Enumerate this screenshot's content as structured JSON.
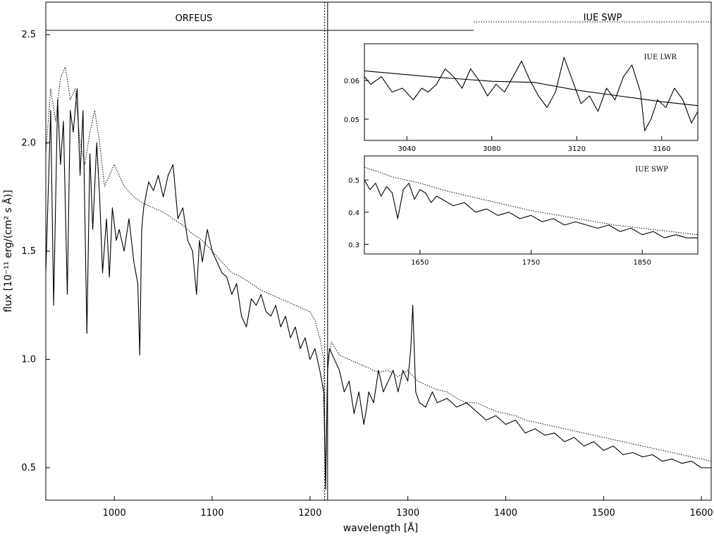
{
  "panels": {
    "left_label": "ORFEUS",
    "right_label": "IUE SWP"
  },
  "chart_data": [
    {
      "id": "main",
      "type": "line",
      "xlabel": "wavelength [Å]",
      "ylabel": "flux [10⁻¹¹ erg/(cm² s Å)]",
      "xlim": [
        930,
        1610
      ],
      "ylim": [
        0.35,
        2.65
      ],
      "x_ticks": [
        1000,
        1100,
        1200,
        1300,
        1400,
        1500,
        1600
      ],
      "y_ticks": [
        0.5,
        1.0,
        1.5,
        2.0,
        2.5
      ],
      "y_tick_labels": [
        "0.5",
        "1.0",
        "1.5",
        "2.0",
        "2.5"
      ],
      "vertical_markers": [
        1215,
        1218
      ],
      "series": [
        {
          "style": "solid",
          "x": [
            930,
            935,
            938,
            942,
            945,
            948,
            952,
            955,
            958,
            962,
            965,
            968,
            972,
            975,
            978,
            982,
            985,
            988,
            992,
            995,
            998,
            1002,
            1005,
            1010,
            1015,
            1020,
            1024,
            1026,
            1028,
            1030,
            1035,
            1040,
            1045,
            1050,
            1055,
            1060,
            1065,
            1070,
            1075,
            1080,
            1084,
            1087,
            1090,
            1095,
            1100,
            1105,
            1110,
            1115,
            1120,
            1125,
            1130,
            1135,
            1140,
            1145,
            1150,
            1155,
            1160,
            1165,
            1170,
            1175,
            1180,
            1185,
            1190,
            1195,
            1200,
            1205,
            1210,
            1212,
            1214,
            1216,
            1218,
            1220,
            1225,
            1230,
            1235,
            1240,
            1245,
            1250,
            1255,
            1258,
            1260,
            1265,
            1270,
            1275,
            1280,
            1285,
            1290,
            1295,
            1300,
            1303,
            1305,
            1308,
            1312,
            1318,
            1325,
            1330,
            1340,
            1350,
            1360,
            1370,
            1380,
            1390,
            1400,
            1410,
            1420,
            1430,
            1440,
            1450,
            1460,
            1470,
            1480,
            1490,
            1500,
            1510,
            1520,
            1530,
            1540,
            1550,
            1560,
            1570,
            1580,
            1590,
            1600,
            1610
          ],
          "y": [
            1.4,
            2.15,
            1.25,
            2.2,
            1.9,
            2.1,
            1.3,
            2.15,
            2.05,
            2.25,
            1.85,
            2.15,
            1.12,
            1.95,
            1.6,
            2.0,
            1.75,
            1.4,
            1.65,
            1.38,
            1.7,
            1.55,
            1.6,
            1.5,
            1.65,
            1.45,
            1.35,
            1.02,
            1.6,
            1.7,
            1.82,
            1.78,
            1.85,
            1.75,
            1.85,
            1.9,
            1.65,
            1.7,
            1.55,
            1.5,
            1.3,
            1.55,
            1.45,
            1.6,
            1.5,
            1.45,
            1.4,
            1.38,
            1.3,
            1.35,
            1.2,
            1.15,
            1.28,
            1.25,
            1.3,
            1.22,
            1.2,
            1.25,
            1.15,
            1.2,
            1.1,
            1.15,
            1.05,
            1.1,
            1.0,
            1.05,
            0.95,
            0.9,
            0.85,
            0.4,
            0.95,
            1.05,
            1.0,
            0.95,
            0.85,
            0.9,
            0.75,
            0.85,
            0.7,
            0.78,
            0.85,
            0.8,
            0.95,
            0.85,
            0.9,
            0.95,
            0.85,
            0.95,
            0.9,
            1.05,
            1.25,
            0.85,
            0.8,
            0.78,
            0.85,
            0.8,
            0.82,
            0.78,
            0.8,
            0.76,
            0.72,
            0.74,
            0.7,
            0.72,
            0.66,
            0.68,
            0.65,
            0.66,
            0.62,
            0.64,
            0.6,
            0.62,
            0.58,
            0.6,
            0.56,
            0.57,
            0.55,
            0.56,
            0.53,
            0.54,
            0.52,
            0.53,
            0.5,
            0.5
          ]
        },
        {
          "style": "dotted",
          "x": [
            930,
            935,
            940,
            945,
            950,
            955,
            960,
            965,
            970,
            975,
            980,
            985,
            990,
            995,
            1000,
            1010,
            1020,
            1030,
            1040,
            1050,
            1060,
            1070,
            1080,
            1090,
            1100,
            1110,
            1120,
            1130,
            1140,
            1150,
            1160,
            1170,
            1180,
            1190,
            1200,
            1205,
            1210,
            1214,
            1216,
            1218,
            1222,
            1230,
            1240,
            1250,
            1260,
            1270,
            1280,
            1290,
            1300,
            1310,
            1320,
            1330,
            1340,
            1350,
            1360,
            1370,
            1380,
            1390,
            1400,
            1410,
            1420,
            1430,
            1440,
            1450,
            1460,
            1470,
            1480,
            1490,
            1500,
            1510,
            1520,
            1530,
            1540,
            1550,
            1560,
            1570,
            1580,
            1590,
            1600,
            1610
          ],
          "y": [
            1.95,
            2.25,
            2.1,
            2.3,
            2.35,
            2.2,
            2.25,
            2.0,
            1.9,
            2.05,
            2.15,
            2.0,
            1.8,
            1.85,
            1.9,
            1.8,
            1.75,
            1.72,
            1.7,
            1.68,
            1.65,
            1.62,
            1.58,
            1.55,
            1.5,
            1.45,
            1.4,
            1.38,
            1.35,
            1.32,
            1.3,
            1.28,
            1.26,
            1.24,
            1.22,
            1.18,
            1.1,
            1.0,
            0.45,
            1.0,
            1.08,
            1.02,
            1.0,
            0.98,
            0.96,
            0.94,
            0.95,
            0.92,
            0.95,
            0.9,
            0.88,
            0.86,
            0.85,
            0.82,
            0.8,
            0.8,
            0.78,
            0.76,
            0.75,
            0.74,
            0.72,
            0.71,
            0.7,
            0.69,
            0.68,
            0.67,
            0.66,
            0.65,
            0.64,
            0.63,
            0.62,
            0.61,
            0.6,
            0.59,
            0.58,
            0.57,
            0.56,
            0.55,
            0.54,
            0.53
          ]
        }
      ]
    },
    {
      "id": "inset-lwr",
      "type": "line",
      "title": "IUE LWR",
      "xlim": [
        3020,
        3177
      ],
      "ylim": [
        0.0445,
        0.0695
      ],
      "x_ticks": [
        3040,
        3080,
        3120,
        3160
      ],
      "y_ticks": [
        0.05,
        0.06
      ],
      "y_tick_labels": [
        "0.05",
        "0.06"
      ],
      "series": [
        {
          "style": "solid",
          "x": [
            3020,
            3023,
            3028,
            3033,
            3038,
            3043,
            3047,
            3050,
            3054,
            3058,
            3062,
            3066,
            3070,
            3074,
            3078,
            3082,
            3086,
            3090,
            3094,
            3098,
            3102,
            3106,
            3110,
            3114,
            3118,
            3122,
            3126,
            3130,
            3134,
            3138,
            3142,
            3146,
            3150,
            3152,
            3155,
            3158,
            3162,
            3166,
            3170,
            3174,
            3177
          ],
          "y": [
            0.061,
            0.059,
            0.061,
            0.057,
            0.058,
            0.055,
            0.058,
            0.057,
            0.059,
            0.063,
            0.061,
            0.058,
            0.063,
            0.06,
            0.056,
            0.059,
            0.057,
            0.061,
            0.065,
            0.06,
            0.056,
            0.053,
            0.057,
            0.066,
            0.06,
            0.054,
            0.056,
            0.052,
            0.058,
            0.055,
            0.061,
            0.064,
            0.057,
            0.047,
            0.05,
            0.055,
            0.053,
            0.058,
            0.055,
            0.049,
            0.052
          ]
        },
        {
          "style": "solid",
          "x": [
            3020,
            3050,
            3080,
            3100,
            3120,
            3140,
            3160,
            3177
          ],
          "y": [
            0.0625,
            0.061,
            0.0598,
            0.0595,
            0.0575,
            0.056,
            0.0545,
            0.0535
          ]
        }
      ]
    },
    {
      "id": "inset-swp",
      "type": "line",
      "title": "IUE SWP",
      "xlim": [
        1600,
        1900
      ],
      "ylim": [
        0.27,
        0.575
      ],
      "x_ticks": [
        1650,
        1750,
        1850
      ],
      "y_ticks": [
        0.3,
        0.4,
        0.5
      ],
      "y_tick_labels": [
        "0.3",
        "0.4",
        "0.5"
      ],
      "series": [
        {
          "style": "solid",
          "x": [
            1600,
            1605,
            1610,
            1615,
            1620,
            1625,
            1630,
            1635,
            1640,
            1645,
            1650,
            1655,
            1660,
            1665,
            1670,
            1680,
            1690,
            1700,
            1710,
            1720,
            1730,
            1740,
            1750,
            1760,
            1770,
            1780,
            1790,
            1800,
            1810,
            1820,
            1830,
            1840,
            1850,
            1860,
            1870,
            1880,
            1890,
            1900
          ],
          "y": [
            0.5,
            0.47,
            0.49,
            0.45,
            0.48,
            0.46,
            0.38,
            0.47,
            0.49,
            0.44,
            0.47,
            0.46,
            0.43,
            0.45,
            0.44,
            0.42,
            0.43,
            0.4,
            0.41,
            0.39,
            0.4,
            0.38,
            0.39,
            0.37,
            0.38,
            0.36,
            0.37,
            0.36,
            0.35,
            0.36,
            0.34,
            0.35,
            0.33,
            0.34,
            0.32,
            0.33,
            0.32,
            0.32
          ]
        },
        {
          "style": "dotted",
          "x": [
            1600,
            1625,
            1650,
            1675,
            1700,
            1725,
            1750,
            1775,
            1800,
            1825,
            1850,
            1875,
            1900
          ],
          "y": [
            0.54,
            0.51,
            0.49,
            0.465,
            0.445,
            0.425,
            0.405,
            0.39,
            0.375,
            0.36,
            0.35,
            0.34,
            0.33
          ]
        }
      ]
    }
  ]
}
